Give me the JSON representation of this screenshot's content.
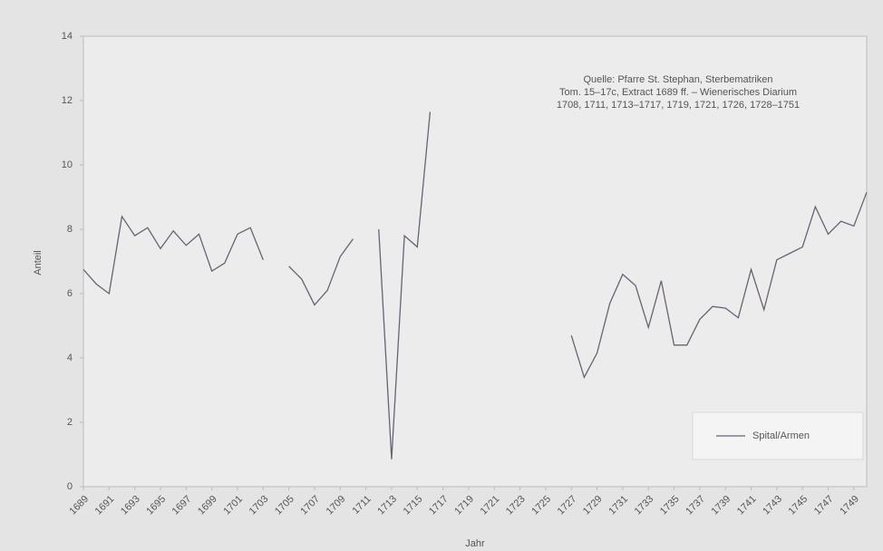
{
  "chart_data": {
    "type": "line",
    "xlabel": "Jahr",
    "ylabel": "Anteil",
    "annotation": [
      "Quelle: Pfarre St. Stephan, Sterbematriken",
      "Tom. 15–17c, Extract 1689 ff. – Wienerisches Diarium",
      "1708, 1711, 1713–1717, 1719,  1721, 1726, 1728–1751"
    ],
    "x": [
      1689,
      1690,
      1691,
      1692,
      1693,
      1694,
      1695,
      1696,
      1697,
      1698,
      1699,
      1700,
      1701,
      1702,
      1703,
      1704,
      1705,
      1706,
      1707,
      1708,
      1709,
      1710,
      1711,
      1712,
      1713,
      1714,
      1715,
      1716,
      1717,
      1718,
      1719,
      1720,
      1721,
      1722,
      1723,
      1724,
      1725,
      1726,
      1727,
      1728,
      1729,
      1730,
      1731,
      1732,
      1733,
      1734,
      1735,
      1736,
      1737,
      1738,
      1739,
      1740,
      1741,
      1742,
      1743,
      1744,
      1745,
      1746,
      1747,
      1748,
      1749,
      1750
    ],
    "series": [
      {
        "name": "Spital/Armen",
        "color": "#6b6173",
        "values": [
          6.75,
          6.3,
          6.0,
          8.4,
          7.8,
          8.05,
          7.4,
          7.95,
          7.5,
          7.85,
          6.7,
          6.95,
          7.85,
          8.05,
          7.05,
          null,
          6.85,
          6.45,
          5.65,
          6.1,
          7.15,
          7.7,
          null,
          8.0,
          0.85,
          7.8,
          7.45,
          11.65,
          null,
          null,
          null,
          null,
          null,
          null,
          null,
          null,
          null,
          null,
          4.7,
          3.4,
          4.15,
          5.7,
          6.6,
          6.25,
          4.95,
          6.4,
          4.4,
          4.4,
          5.2,
          5.6,
          5.55,
          5.25,
          6.75,
          5.5,
          7.05,
          7.25,
          7.45,
          8.7,
          7.85,
          8.25,
          8.1,
          9.15
        ]
      }
    ],
    "xlim": [
      1689,
      1750
    ],
    "xticks": [
      1689,
      1691,
      1693,
      1695,
      1697,
      1699,
      1701,
      1703,
      1705,
      1707,
      1709,
      1711,
      1713,
      1715,
      1717,
      1719,
      1721,
      1723,
      1725,
      1727,
      1729,
      1731,
      1733,
      1735,
      1737,
      1739,
      1741,
      1743,
      1745,
      1747,
      1749
    ],
    "ylim": [
      0,
      14
    ],
    "yticks": [
      0,
      2,
      4,
      6,
      8,
      10,
      12,
      14
    ],
    "legend": "lower right"
  }
}
